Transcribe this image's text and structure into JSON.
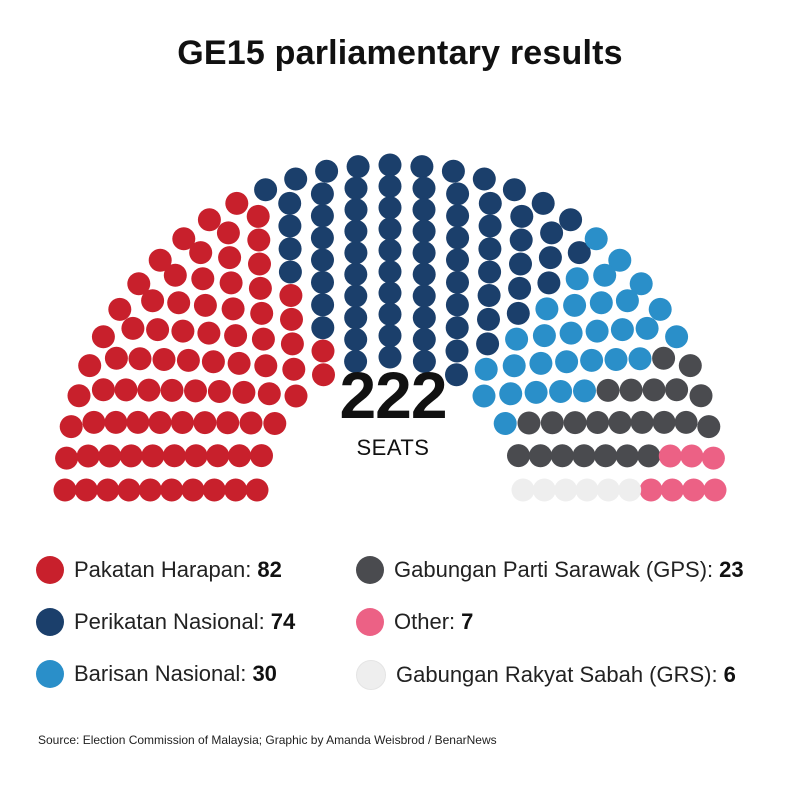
{
  "chart_data": {
    "type": "parliament",
    "title": "GE15 parliamentary results",
    "total": "222",
    "total_label": "SEATS",
    "parties": [
      {
        "name": "Pakatan Harapan",
        "seats": 82,
        "color": "#c8202c"
      },
      {
        "name": "Perikatan Nasional",
        "seats": 74,
        "color": "#1b3f6b"
      },
      {
        "name": "Barisan Nasional",
        "seats": 30,
        "color": "#2a8fc9"
      },
      {
        "name": "Gabungan Parti Sarawak (GPS)",
        "seats": 23,
        "color": "#4a4b4f"
      },
      {
        "name": "Other",
        "seats": 7,
        "color": "#ec6185"
      },
      {
        "name": "Gabungan Rakyat Sabah (GRS)",
        "seats": 6,
        "color": "#eeeeee"
      }
    ]
  },
  "legend": [
    {
      "label": "Pakatan Harapan:",
      "value": "82"
    },
    {
      "label": "Perikatan Nasional:",
      "value": "74"
    },
    {
      "label": "Barisan Nasional:",
      "value": "30"
    },
    {
      "label": "Gabungan Parti Sarawak (GPS):",
      "value": "23"
    },
    {
      "label": "Other:",
      "value": "7"
    },
    {
      "label": "Gabungan Rakyat Sabah (GRS):",
      "value": "6"
    }
  ],
  "source": "Source: Election Commission of Malaysia; Graphic by Amanda Weisbrod / BenarNews"
}
